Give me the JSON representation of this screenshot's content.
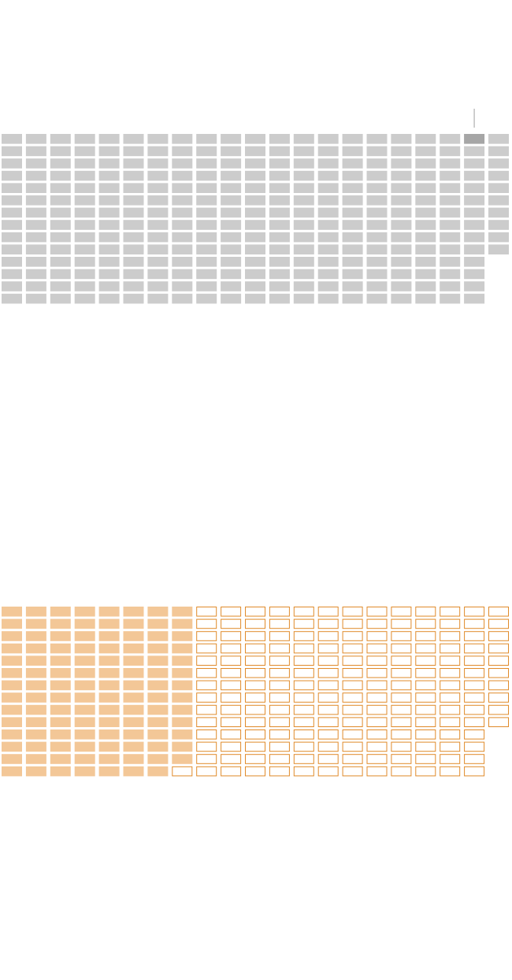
{
  "chart_data": [
    {
      "type": "waffle",
      "grid": {
        "columns": 21,
        "column_counts": [
          14,
          14,
          14,
          14,
          14,
          14,
          14,
          14,
          14,
          14,
          14,
          14,
          14,
          14,
          14,
          14,
          14,
          14,
          14,
          14,
          10
        ]
      },
      "total_units": 290,
      "highlighted_units": 1,
      "highlight_position": {
        "column": 20,
        "row": 1
      },
      "marker_column": 20,
      "colors": {
        "unit": "#cccccc",
        "highlight": "#a6a6a6",
        "marker": "#bfbfbf"
      }
    },
    {
      "type": "waffle",
      "grid": {
        "columns": 21,
        "column_counts": [
          14,
          14,
          14,
          14,
          14,
          14,
          14,
          14,
          14,
          14,
          14,
          14,
          14,
          14,
          14,
          14,
          14,
          14,
          14,
          14,
          10
        ]
      },
      "total_units": 290,
      "filled_units": 111,
      "colors": {
        "filled": "#f3c797",
        "outline": "#e08a2a",
        "empty_fill": "#ffffff"
      }
    }
  ]
}
